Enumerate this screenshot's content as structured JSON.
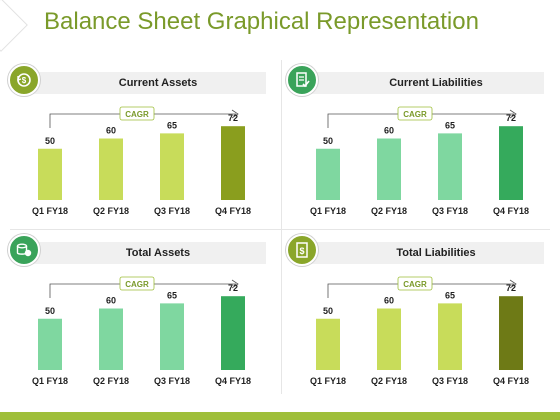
{
  "page": {
    "title": "Balance Sheet Graphical Representation"
  },
  "colors": {
    "title": "#7a9a2a",
    "lime_light": "#c8dc5a",
    "lime_dark": "#8a9e1e",
    "green_light": "#7fd7a0",
    "green_dark": "#35aa5c",
    "olive_dark": "#6e7a16",
    "icon_lime": "#8aa62a",
    "icon_green": "#3aa35a"
  },
  "chart_data": [
    {
      "type": "bar",
      "title": "Current Assets",
      "icon": "currency-cycle-icon",
      "annotation": "CAGR",
      "categories": [
        "Q1 FY18",
        "Q2 FY18",
        "Q3 FY18",
        "Q4 FY18"
      ],
      "values": [
        50,
        60,
        65,
        72
      ],
      "ylim": [
        0,
        80
      ],
      "colors": [
        "#c8dc5a",
        "#c8dc5a",
        "#c8dc5a",
        "#8a9e1e"
      ],
      "icon_color": "#8aa62a"
    },
    {
      "type": "bar",
      "title": "Current Liabilities",
      "icon": "document-check-icon",
      "annotation": "CAGR",
      "categories": [
        "Q1 FY18",
        "Q2 FY18",
        "Q3 FY18",
        "Q4 FY18"
      ],
      "values": [
        50,
        60,
        65,
        72
      ],
      "ylim": [
        0,
        80
      ],
      "colors": [
        "#7fd7a0",
        "#7fd7a0",
        "#7fd7a0",
        "#35aa5c"
      ],
      "icon_color": "#3aa35a"
    },
    {
      "type": "bar",
      "title": "Total Assets",
      "icon": "coin-stack-icon",
      "annotation": "CAGR",
      "categories": [
        "Q1 FY18",
        "Q2 FY18",
        "Q3 FY18",
        "Q4 FY18"
      ],
      "values": [
        50,
        60,
        65,
        72
      ],
      "ylim": [
        0,
        80
      ],
      "colors": [
        "#7fd7a0",
        "#7fd7a0",
        "#7fd7a0",
        "#35aa5c"
      ],
      "icon_color": "#3aa35a"
    },
    {
      "type": "bar",
      "title": "Total Liabilities",
      "icon": "document-dollar-icon",
      "annotation": "CAGR",
      "categories": [
        "Q1 FY18",
        "Q2 FY18",
        "Q3 FY18",
        "Q4 FY18"
      ],
      "values": [
        50,
        60,
        65,
        72
      ],
      "ylim": [
        0,
        80
      ],
      "colors": [
        "#c8dc5a",
        "#c8dc5a",
        "#c8dc5a",
        "#6e7a16"
      ],
      "icon_color": "#8aa62a"
    }
  ]
}
